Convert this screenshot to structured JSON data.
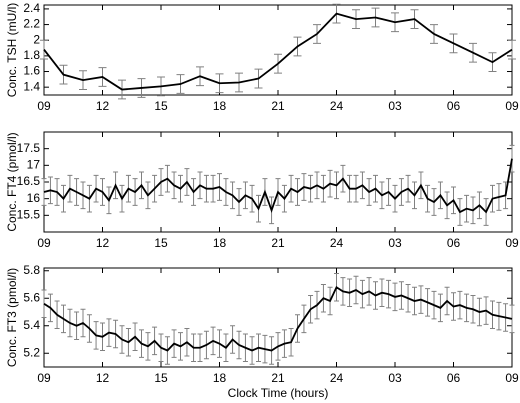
{
  "chart_data": [
    {
      "type": "line",
      "ylabel": "Conc. TSH (mU/l)",
      "color": "#000000",
      "error_color": "#808080",
      "x": [
        9,
        10,
        11,
        12,
        13,
        14,
        15,
        16,
        17,
        18,
        19,
        20,
        21,
        22,
        23,
        24,
        25,
        26,
        27,
        28,
        29,
        30,
        31,
        32,
        33
      ],
      "values": [
        1.88,
        1.56,
        1.49,
        1.53,
        1.37,
        1.39,
        1.41,
        1.44,
        1.54,
        1.45,
        1.46,
        1.51,
        1.7,
        1.92,
        2.08,
        2.34,
        2.27,
        2.29,
        2.23,
        2.27,
        2.08,
        1.96,
        1.84,
        1.72,
        1.88
      ],
      "error": 0.12,
      "xlim": [
        9,
        33
      ],
      "xticks": [
        {
          "value": 9,
          "label": "09"
        },
        12,
        15,
        18,
        21,
        24,
        {
          "value": 27,
          "label": "03"
        },
        {
          "value": 30,
          "label": "06"
        },
        {
          "value": 33,
          "label": "09"
        }
      ],
      "ylim": [
        1.3,
        2.45
      ],
      "yticks": [
        1.4,
        1.6,
        1.8,
        2,
        2.2,
        2.4
      ]
    },
    {
      "type": "line",
      "ylabel": "Conc. FT4 (pmol/l)",
      "color": "#000000",
      "error_color": "#808080",
      "x": [
        9,
        9.33,
        9.67,
        10,
        10.33,
        10.67,
        11,
        11.33,
        11.67,
        12,
        12.33,
        12.67,
        13,
        13.33,
        13.67,
        14,
        14.33,
        14.67,
        15,
        15.33,
        15.67,
        16,
        16.33,
        16.67,
        17,
        17.33,
        17.67,
        18,
        18.33,
        18.67,
        19,
        19.33,
        19.67,
        20,
        20.33,
        20.67,
        21,
        21.33,
        21.67,
        22,
        22.33,
        22.67,
        23,
        23.33,
        23.67,
        24,
        24.33,
        24.67,
        25,
        25.33,
        25.67,
        26,
        26.33,
        26.67,
        27,
        27.33,
        27.67,
        28,
        28.33,
        28.67,
        29,
        29.33,
        29.67,
        30,
        30.33,
        30.67,
        31,
        31.33,
        31.67,
        32,
        32.33,
        32.67,
        33
      ],
      "values": [
        16.2,
        16.25,
        16.2,
        16.0,
        16.3,
        16.2,
        16.1,
        16.0,
        16.3,
        16.2,
        15.95,
        16.4,
        16.0,
        16.3,
        16.2,
        16.4,
        16.1,
        16.3,
        16.5,
        16.6,
        16.4,
        16.3,
        16.5,
        16.2,
        16.4,
        16.3,
        16.3,
        16.35,
        16.2,
        16.1,
        15.9,
        16.1,
        16.0,
        15.7,
        16.2,
        15.65,
        16.2,
        16.0,
        16.3,
        16.2,
        16.35,
        16.3,
        16.4,
        16.3,
        16.45,
        16.4,
        16.6,
        16.3,
        16.3,
        16.4,
        16.2,
        16.3,
        16.1,
        16.2,
        16.0,
        16.2,
        16.3,
        16.1,
        16.4,
        16.0,
        15.9,
        16.1,
        15.8,
        15.95,
        15.6,
        15.7,
        15.65,
        15.8,
        15.6,
        16.0,
        16.05,
        16.1,
        17.2
      ],
      "error": 0.4,
      "xlim": [
        9,
        33
      ],
      "xticks": [
        {
          "value": 9,
          "label": "09"
        },
        12,
        15,
        18,
        21,
        24,
        {
          "value": 27,
          "label": "03"
        },
        {
          "value": 30,
          "label": "06"
        },
        {
          "value": 33,
          "label": "09"
        }
      ],
      "ylim": [
        15.0,
        18.0
      ],
      "yticks": [
        15.5,
        16,
        16.5,
        17,
        17.5
      ]
    },
    {
      "type": "line",
      "ylabel": "Conc. FT3 (pmol/l)",
      "xlabel": "Clock Time (hours)",
      "color": "#000000",
      "error_color": "#808080",
      "x": [
        9,
        9.33,
        9.67,
        10,
        10.33,
        10.67,
        11,
        11.33,
        11.67,
        12,
        12.33,
        12.67,
        13,
        13.33,
        13.67,
        14,
        14.33,
        14.67,
        15,
        15.33,
        15.67,
        16,
        16.33,
        16.67,
        17,
        17.33,
        17.67,
        18,
        18.33,
        18.67,
        19,
        19.33,
        19.67,
        20,
        20.33,
        20.67,
        21,
        21.33,
        21.67,
        22,
        22.33,
        22.67,
        23,
        23.33,
        23.67,
        24,
        24.33,
        24.67,
        25,
        25.33,
        25.67,
        26,
        26.33,
        26.67,
        27,
        27.33,
        27.67,
        28,
        28.33,
        28.67,
        29,
        29.33,
        29.67,
        30,
        30.33,
        30.67,
        31,
        31.33,
        31.67,
        32,
        32.33,
        32.67,
        33
      ],
      "values": [
        5.56,
        5.53,
        5.48,
        5.45,
        5.42,
        5.4,
        5.42,
        5.38,
        5.33,
        5.32,
        5.35,
        5.34,
        5.3,
        5.28,
        5.32,
        5.27,
        5.25,
        5.29,
        5.24,
        5.22,
        5.27,
        5.25,
        5.28,
        5.24,
        5.24,
        5.26,
        5.29,
        5.27,
        5.24,
        5.3,
        5.26,
        5.24,
        5.22,
        5.24,
        5.23,
        5.22,
        5.25,
        5.27,
        5.28,
        5.38,
        5.45,
        5.52,
        5.55,
        5.6,
        5.58,
        5.68,
        5.65,
        5.64,
        5.66,
        5.63,
        5.65,
        5.62,
        5.64,
        5.63,
        5.61,
        5.62,
        5.6,
        5.58,
        5.59,
        5.57,
        5.55,
        5.53,
        5.58,
        5.54,
        5.55,
        5.53,
        5.52,
        5.5,
        5.51,
        5.48,
        5.47,
        5.46,
        5.45
      ],
      "error": 0.1,
      "xlim": [
        9,
        33
      ],
      "xticks": [
        {
          "value": 9,
          "label": "09"
        },
        12,
        15,
        18,
        21,
        24,
        {
          "value": 27,
          "label": "03"
        },
        {
          "value": 30,
          "label": "06"
        },
        {
          "value": 33,
          "label": "09"
        }
      ],
      "ylim": [
        5.1,
        5.82
      ],
      "yticks": [
        5.2,
        5.4,
        5.6,
        5.8
      ]
    }
  ]
}
